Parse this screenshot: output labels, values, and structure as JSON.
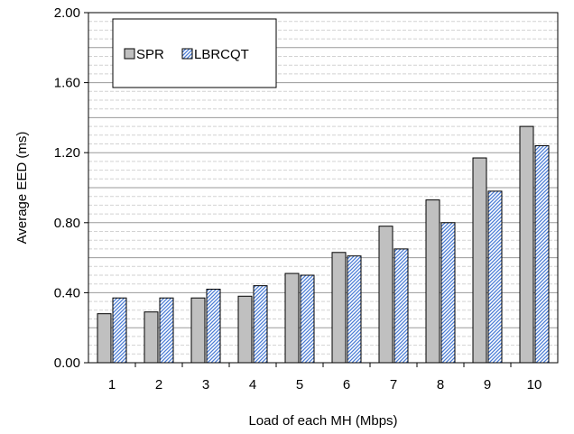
{
  "chart_data": {
    "type": "bar",
    "title": "",
    "xlabel": "Load of each MH (Mbps)",
    "ylabel": "Average EED (ms)",
    "categories": [
      "1",
      "2",
      "3",
      "4",
      "5",
      "6",
      "7",
      "8",
      "9",
      "10"
    ],
    "series": [
      {
        "name": "SPR",
        "values": [
          0.28,
          0.29,
          0.37,
          0.38,
          0.51,
          0.63,
          0.78,
          0.93,
          1.17,
          1.35
        ],
        "color": "#c0c0c0"
      },
      {
        "name": "LBRCQT",
        "values": [
          0.37,
          0.37,
          0.42,
          0.44,
          0.5,
          0.61,
          0.65,
          0.8,
          0.98,
          1.24
        ],
        "color": "#4a7cd6"
      }
    ],
    "ylim": [
      0,
      2.0
    ],
    "yticks": [
      "0.00",
      "0.40",
      "0.80",
      "1.20",
      "1.60",
      "2.00"
    ],
    "grid": true,
    "legend_position": "top-left"
  }
}
